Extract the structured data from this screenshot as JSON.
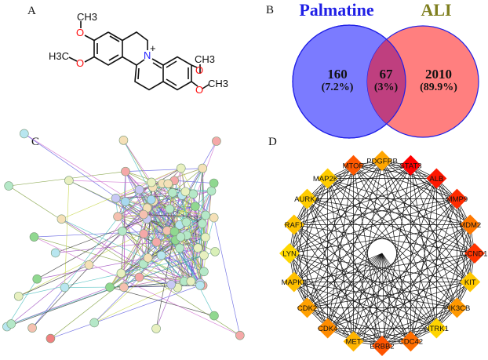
{
  "panels": {
    "a": {
      "label": "A"
    },
    "b": {
      "label": "B"
    },
    "c": {
      "label": "C"
    },
    "d": {
      "label": "D"
    }
  },
  "molecule": {
    "atoms": {
      "o_label": "O",
      "n_label": "N",
      "charge": "+",
      "ch3_top": "CH3",
      "h3c_left": "H3C",
      "ch3_right_top": "CH3",
      "ch3_right_bottom": "CH3"
    },
    "colors": {
      "oxygen": "#ff0d0d",
      "nitrogen": "#1f1fff",
      "bond": "#111111"
    }
  },
  "venn": {
    "sets": [
      {
        "name": "Palmatine",
        "color": "#1f1fe6",
        "fill": "#7b7bff"
      },
      {
        "name": "ALI",
        "color": "#7f7f1f",
        "fill": "#ff7f7f"
      }
    ],
    "intersection_fill": "#bf3f7f",
    "regions": {
      "left_only": {
        "count": "160",
        "percent": "(7.2%)"
      },
      "both": {
        "count": "67",
        "percent": "(3%)"
      },
      "right_only": {
        "count": "2010",
        "percent": "(89.9%)"
      }
    }
  },
  "network_d": {
    "nodes": [
      {
        "name": "PDGFRB",
        "color": "#ffa500"
      },
      {
        "name": "STAT3",
        "color": "#ff0000"
      },
      {
        "name": "ALB",
        "color": "#ff1800"
      },
      {
        "name": "MMP9",
        "color": "#ff2c00"
      },
      {
        "name": "MDM2",
        "color": "#ff7800"
      },
      {
        "name": "CCND1",
        "color": "#ff3400"
      },
      {
        "name": "KIT",
        "color": "#ffc800"
      },
      {
        "name": "PIK3CB",
        "color": "#ff9800"
      },
      {
        "name": "NTRK1",
        "color": "#ffd400"
      },
      {
        "name": "CDC42",
        "color": "#ff6e00"
      },
      {
        "name": "ERBB2",
        "color": "#ff5400"
      },
      {
        "name": "MET",
        "color": "#ffb400"
      },
      {
        "name": "CDK4",
        "color": "#ff8c00"
      },
      {
        "name": "CDK2",
        "color": "#ffa000"
      },
      {
        "name": "MAPK8",
        "color": "#ffc000"
      },
      {
        "name": "LYN",
        "color": "#ffd800"
      },
      {
        "name": "RAF1",
        "color": "#ffc400"
      },
      {
        "name": "AURKA",
        "color": "#ffcc00"
      },
      {
        "name": "MAP2K1",
        "color": "#ffcc00"
      },
      {
        "name": "MTOR",
        "color": "#ff5800"
      }
    ]
  }
}
